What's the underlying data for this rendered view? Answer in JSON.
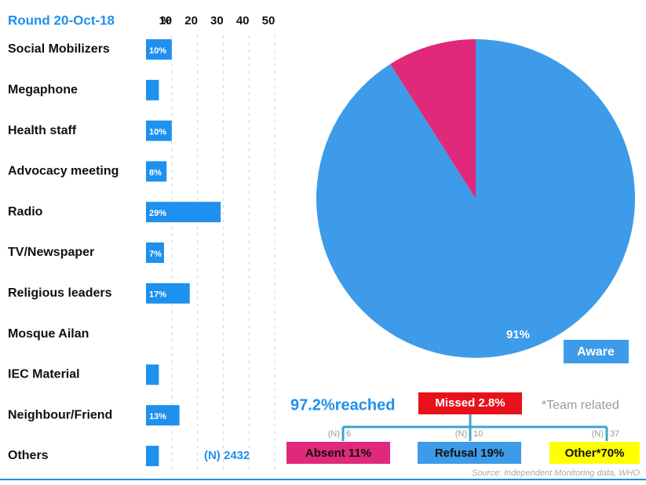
{
  "chart_data": [
    {
      "type": "barh",
      "title": "Round 20-Oct-18",
      "xlabel": "%",
      "categories": [
        "Social Mobilizers",
        "Megaphone",
        "Health  staff",
        "Advocacy meeting",
        "Radio",
        "TV/Newspaper",
        "Religious leaders",
        "Mosque Ailan",
        "IEC Material",
        "Neighbour/Friend",
        "Others"
      ],
      "values": [
        10,
        5,
        10,
        8,
        29,
        7,
        17,
        0,
        5,
        13,
        5
      ],
      "value_labels": [
        "10%",
        null,
        "10%",
        "8%",
        "29%",
        "7%",
        "17%",
        null,
        null,
        "13%",
        null
      ],
      "color": "#1e90ee",
      "xlim": [
        0,
        50
      ],
      "xticks": [
        10,
        20,
        30,
        40,
        50
      ],
      "grid": true,
      "annotation": "(N) 2432"
    },
    {
      "type": "pie",
      "categories": [
        "Aware",
        null
      ],
      "values": [
        91,
        9
      ],
      "value_labels": [
        "91%",
        null
      ],
      "colors": [
        "#3d9be9",
        "#e0297a"
      ]
    }
  ],
  "summary": {
    "reached": "97.2%reached",
    "missed": "Missed 2.8%",
    "note": "*Team related",
    "reasons": [
      {
        "label": "Absent 11%",
        "n_label": "(N)",
        "n": 6,
        "color": "#e0297a"
      },
      {
        "label": "Refusal 19%",
        "n_label": "(N)",
        "n": 10,
        "color": "#3d9be9"
      },
      {
        "label": "Other*70%",
        "n_label": "(N)",
        "n": 37,
        "color": "#ffff00"
      }
    ],
    "source": "Source: Independent Monitoring data, WHO"
  }
}
